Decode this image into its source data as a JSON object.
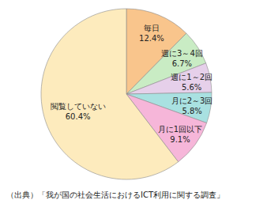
{
  "chart_data": {
    "type": "pie",
    "categories": [
      "毎日",
      "週に3～4回",
      "週に1～2回",
      "月に2～3回",
      "月に1回以下",
      "閲覧していない"
    ],
    "values": [
      12.4,
      6.7,
      5.6,
      5.8,
      9.1,
      60.4
    ],
    "value_labels": [
      "12.4%",
      "6.7%",
      "5.6%",
      "5.8%",
      "9.1%",
      "60.4%"
    ],
    "colors": [
      "#f9c58c",
      "#c9ecc4",
      "#e6d0ea",
      "#a9e1e1",
      "#f6b6d9",
      "#fdebbd"
    ],
    "data_labels": true,
    "annotations": [
      "（出典）「我が国の社会生活におけるICT利用に関する調査」"
    ]
  }
}
